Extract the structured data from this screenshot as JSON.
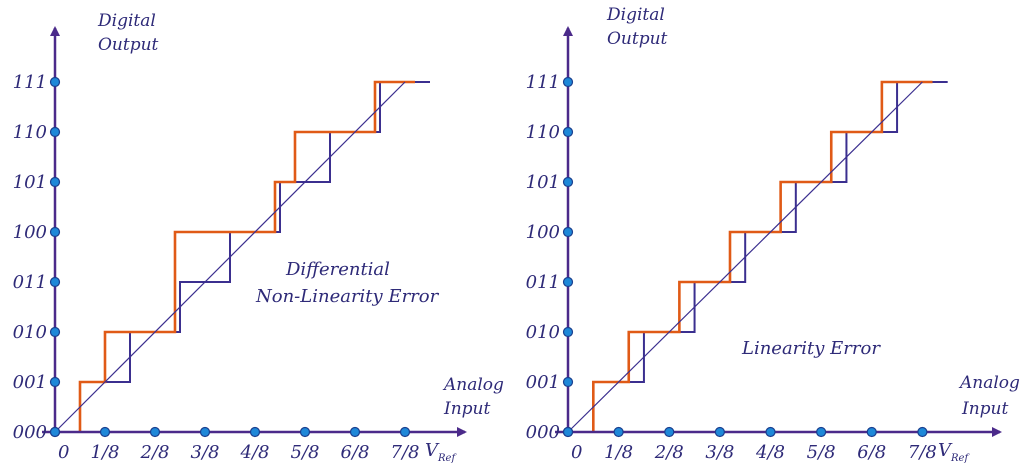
{
  "colors": {
    "axis": "#4b2a8a",
    "ideal": "#3b2f8f",
    "actual": "#e05a16",
    "dot": "#1e88d8",
    "dot_stroke": "#1a3f8f",
    "text": "#2e2a78"
  },
  "charts": [
    {
      "y_title_1": "Digital",
      "y_title_2": "Output",
      "x_title_1": "Analog",
      "x_title_2": "Input",
      "vref_main": "V",
      "vref_sub": "Ref",
      "annotation_1": "Differential",
      "annotation_2": "Non-Linearity Error"
    },
    {
      "y_title_1": "Digital",
      "y_title_2": "Output",
      "x_title_1": "Analog",
      "x_title_2": "Input",
      "vref_main": "V",
      "vref_sub": "Ref",
      "annotation_1": "Linearity Error",
      "annotation_2": ""
    }
  ],
  "chart_data": [
    {
      "type": "line",
      "x_tick_labels": [
        "0",
        "1/8",
        "2/8",
        "3/8",
        "4/8",
        "5/8",
        "6/8",
        "7/8"
      ],
      "y_tick_labels": [
        "000",
        "001",
        "010",
        "011",
        "100",
        "101",
        "110",
        "111"
      ],
      "series": [
        {
          "x": [
            0,
            0.0625,
            0.0625,
            0.1875,
            0.1875,
            0.3125,
            0.3125,
            0.4375,
            0.4375,
            0.5625,
            0.5625,
            0.6875,
            0.6875,
            0.8125,
            0.8125,
            0.9375
          ],
          "y": [
            0,
            0,
            1,
            1,
            2,
            2,
            3,
            3,
            4,
            4,
            5,
            5,
            6,
            6,
            7,
            7
          ]
        },
        {
          "x": [
            0.0625,
            0.0625,
            0.125,
            0.125,
            0.3,
            0.3,
            0.35,
            0.35,
            0.55,
            0.55,
            0.6,
            0.6,
            0.8,
            0.8,
            0.9
          ],
          "y": [
            0,
            1,
            1,
            2,
            2,
            4,
            4,
            4,
            4,
            5,
            5,
            6,
            6,
            7,
            7
          ]
        },
        {
          "x": [
            0,
            0.875
          ],
          "y": [
            0,
            7
          ]
        }
      ]
    },
    {
      "type": "line",
      "x_tick_labels": [
        "0",
        "1/8",
        "2/8",
        "3/8",
        "4/8",
        "5/8",
        "6/8",
        "7/8"
      ],
      "y_tick_labels": [
        "000",
        "001",
        "010",
        "011",
        "100",
        "101",
        "110",
        "111"
      ],
      "series": [
        {
          "x": [
            0,
            0.0625,
            0.0625,
            0.1875,
            0.1875,
            0.3125,
            0.3125,
            0.4375,
            0.4375,
            0.5625,
            0.5625,
            0.6875,
            0.6875,
            0.8125,
            0.8125,
            0.9375
          ],
          "y": [
            0,
            0,
            1,
            1,
            2,
            2,
            3,
            3,
            4,
            4,
            5,
            5,
            6,
            6,
            7,
            7
          ]
        },
        {
          "x": [
            0.0625,
            0.0625,
            0.15,
            0.15,
            0.275,
            0.275,
            0.4,
            0.4,
            0.525,
            0.525,
            0.65,
            0.65,
            0.775,
            0.775,
            0.9
          ],
          "y": [
            0,
            1,
            1,
            2,
            2,
            3,
            3,
            4,
            4,
            5,
            5,
            6,
            6,
            7,
            7
          ]
        },
        {
          "x": [
            0,
            0.875
          ],
          "y": [
            0,
            7
          ]
        }
      ]
    }
  ]
}
